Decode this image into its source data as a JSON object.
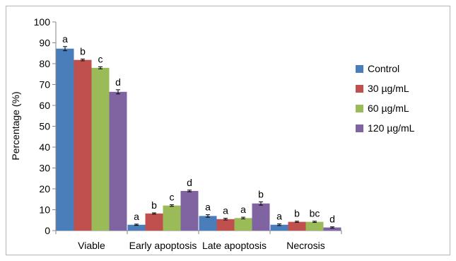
{
  "chart_data": {
    "type": "bar",
    "title": "",
    "xlabel": "",
    "ylabel": "Percentage (%)",
    "ylim": [
      0,
      100
    ],
    "yticks": [
      0,
      10,
      20,
      30,
      40,
      50,
      60,
      70,
      80,
      90,
      100
    ],
    "categories": [
      "Viable",
      "Early apoptosis",
      "Late apoptosis",
      "Necrosis"
    ],
    "series": [
      {
        "name": "Control",
        "color": "#4a7ebb",
        "values": [
          87.2,
          2.8,
          7.0,
          2.8
        ],
        "errors": [
          1.0,
          0.3,
          0.6,
          0.4
        ],
        "letters": [
          "a",
          "a",
          "a",
          "a"
        ]
      },
      {
        "name": "30 µg/mL",
        "color": "#c0504d",
        "values": [
          81.8,
          8.2,
          5.5,
          4.2
        ],
        "errors": [
          0.4,
          0.3,
          0.4,
          0.3
        ],
        "letters": [
          "b",
          "b",
          "a",
          "b"
        ]
      },
      {
        "name": "60 µg/mL",
        "color": "#9bbb59",
        "values": [
          78.0,
          12.0,
          6.0,
          4.2
        ],
        "errors": [
          0.5,
          0.4,
          0.4,
          0.3
        ],
        "letters": [
          "c",
          "c",
          "a",
          "bc"
        ]
      },
      {
        "name": "120 µg/mL",
        "color": "#8064a2",
        "values": [
          66.5,
          19.0,
          13.0,
          1.5
        ],
        "errors": [
          1.0,
          0.4,
          0.8,
          0.3
        ],
        "letters": [
          "d",
          "d",
          "b",
          "d"
        ]
      }
    ],
    "legend_position": "right",
    "grid": false
  }
}
